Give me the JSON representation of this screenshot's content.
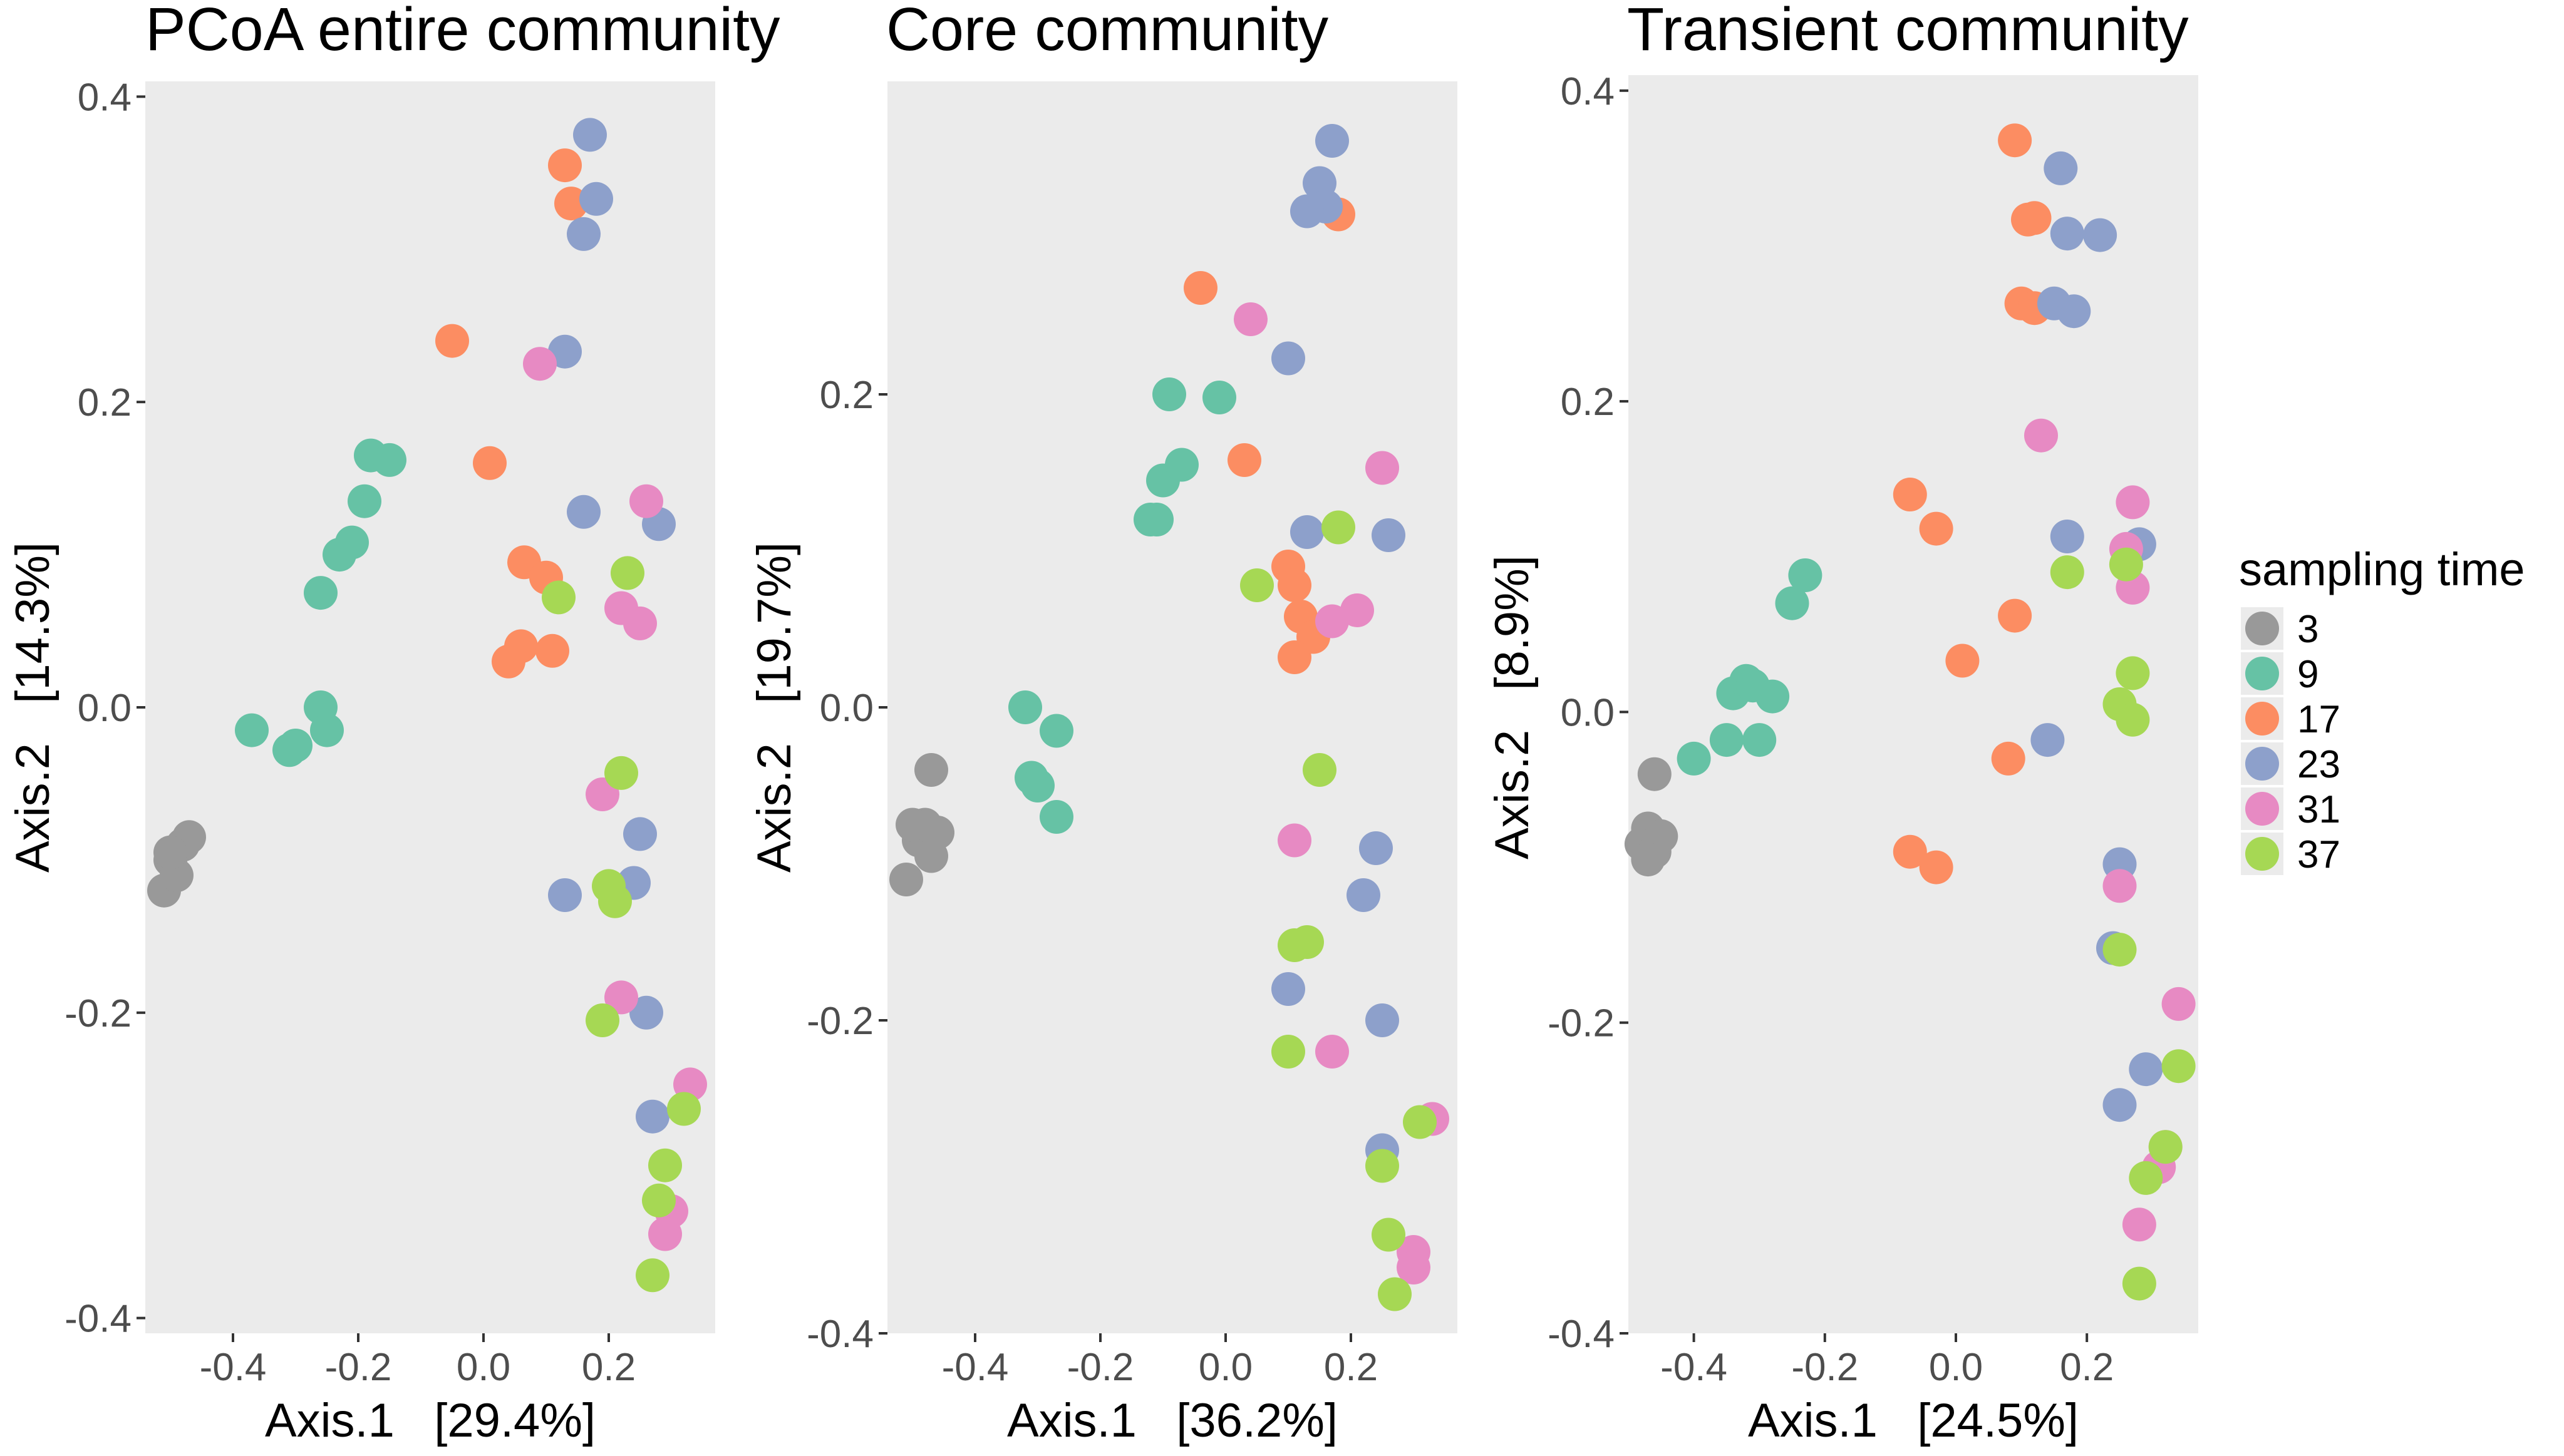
{
  "legend": {
    "title": "sampling time",
    "entries": [
      {
        "label": "3",
        "color": "#999999"
      },
      {
        "label": "9",
        "color": "#66C2A5"
      },
      {
        "label": "17",
        "color": "#FC8D62"
      },
      {
        "label": "23",
        "color": "#8DA0CB"
      },
      {
        "label": "31",
        "color": "#E78AC3"
      },
      {
        "label": "37",
        "color": "#A6D854"
      }
    ]
  },
  "chart_data": [
    {
      "type": "scatter",
      "title": "PCoA entire community",
      "xlabel": "Axis.1   [29.4%]",
      "ylabel": "Axis.2   [14.3%]",
      "xlim": [
        -0.54,
        0.37
      ],
      "ylim": [
        -0.41,
        0.41
      ],
      "xticks": [
        -0.4,
        -0.2,
        0.0,
        0.2
      ],
      "xtick_labels": [
        "-0.4",
        "-0.2",
        "0.0",
        "0.2"
      ],
      "yticks": [
        -0.4,
        -0.2,
        0.0,
        0.2,
        0.4
      ],
      "ytick_labels": [
        "-0.4",
        "-0.2",
        "0.0",
        "0.2",
        "0.4"
      ],
      "series": [
        {
          "name": "3",
          "points": [
            [
              -0.51,
              -0.12
            ],
            [
              -0.5,
              -0.1
            ],
            [
              -0.49,
              -0.11
            ],
            [
              -0.48,
              -0.09
            ],
            [
              -0.47,
              -0.085
            ],
            [
              -0.5,
              -0.095
            ]
          ]
        },
        {
          "name": "9",
          "points": [
            [
              -0.37,
              -0.015
            ],
            [
              -0.31,
              -0.028
            ],
            [
              -0.3,
              -0.025
            ],
            [
              -0.26,
              0.0
            ],
            [
              -0.25,
              -0.015
            ],
            [
              -0.26,
              0.075
            ],
            [
              -0.23,
              0.1
            ],
            [
              -0.21,
              0.108
            ],
            [
              -0.19,
              0.135
            ],
            [
              -0.18,
              0.165
            ],
            [
              -0.15,
              0.162
            ]
          ]
        },
        {
          "name": "17",
          "points": [
            [
              -0.05,
              0.24
            ],
            [
              0.01,
              0.16
            ],
            [
              0.04,
              0.03
            ],
            [
              0.06,
              0.04
            ],
            [
              0.065,
              0.095
            ],
            [
              0.1,
              0.085
            ],
            [
              0.11,
              0.037
            ],
            [
              0.13,
              0.355
            ],
            [
              0.14,
              0.33
            ]
          ]
        },
        {
          "name": "23",
          "points": [
            [
              0.17,
              0.375
            ],
            [
              0.18,
              0.333
            ],
            [
              0.16,
              0.31
            ],
            [
              0.13,
              0.233
            ],
            [
              0.16,
              0.128
            ],
            [
              0.28,
              0.12
            ],
            [
              0.13,
              -0.123
            ],
            [
              0.24,
              -0.115
            ],
            [
              0.25,
              -0.083
            ],
            [
              0.26,
              -0.2
            ],
            [
              0.27,
              -0.268
            ]
          ]
        },
        {
          "name": "31",
          "points": [
            [
              0.09,
              0.225
            ],
            [
              0.26,
              0.135
            ],
            [
              0.22,
              0.065
            ],
            [
              0.25,
              0.055
            ],
            [
              0.19,
              -0.057
            ],
            [
              0.22,
              -0.19
            ],
            [
              0.33,
              -0.247
            ],
            [
              0.3,
              -0.33
            ],
            [
              0.29,
              -0.345
            ]
          ]
        },
        {
          "name": "37",
          "points": [
            [
              0.23,
              0.088
            ],
            [
              0.12,
              0.072
            ],
            [
              0.22,
              -0.043
            ],
            [
              0.2,
              -0.117
            ],
            [
              0.21,
              -0.127
            ],
            [
              0.19,
              -0.205
            ],
            [
              0.32,
              -0.263
            ],
            [
              0.29,
              -0.3
            ],
            [
              0.28,
              -0.323
            ],
            [
              0.27,
              -0.372
            ]
          ]
        }
      ]
    },
    {
      "type": "scatter",
      "title": "Core community",
      "xlabel": "Axis.1   [36.2%]",
      "ylabel": "Axis.2   [19.7%]",
      "xlim": [
        -0.54,
        0.37
      ],
      "ylim": [
        -0.4,
        0.4
      ],
      "xticks": [
        -0.4,
        -0.2,
        0.0,
        0.2
      ],
      "xtick_labels": [
        "-0.4",
        "-0.2",
        "0.0",
        "0.2"
      ],
      "yticks": [
        -0.4,
        -0.2,
        0.0,
        0.2
      ],
      "ytick_labels": [
        "-0.4",
        "-0.2",
        "0.0",
        "0.2"
      ],
      "series": [
        {
          "name": "3",
          "points": [
            [
              -0.51,
              -0.11
            ],
            [
              -0.49,
              -0.085
            ],
            [
              -0.48,
              -0.075
            ],
            [
              -0.47,
              -0.095
            ],
            [
              -0.46,
              -0.08
            ],
            [
              -0.47,
              -0.04
            ],
            [
              -0.5,
              -0.075
            ]
          ]
        },
        {
          "name": "9",
          "points": [
            [
              -0.32,
              0.0
            ],
            [
              -0.31,
              -0.045
            ],
            [
              -0.3,
              -0.05
            ],
            [
              -0.27,
              -0.015
            ],
            [
              -0.27,
              -0.07
            ],
            [
              -0.12,
              0.12
            ],
            [
              -0.11,
              0.12
            ],
            [
              -0.1,
              0.145
            ],
            [
              -0.09,
              0.2
            ],
            [
              -0.07,
              0.155
            ],
            [
              -0.01,
              0.198
            ]
          ]
        },
        {
          "name": "17",
          "points": [
            [
              -0.04,
              0.268
            ],
            [
              0.03,
              0.158
            ],
            [
              0.1,
              0.09
            ],
            [
              0.11,
              0.078
            ],
            [
              0.12,
              0.058
            ],
            [
              0.14,
              0.045
            ],
            [
              0.11,
              0.032
            ],
            [
              0.18,
              0.315
            ]
          ]
        },
        {
          "name": "23",
          "points": [
            [
              0.17,
              0.362
            ],
            [
              0.15,
              0.335
            ],
            [
              0.16,
              0.32
            ],
            [
              0.13,
              0.317
            ],
            [
              0.1,
              0.223
            ],
            [
              0.13,
              0.112
            ],
            [
              0.26,
              0.11
            ],
            [
              0.24,
              -0.09
            ],
            [
              0.22,
              -0.12
            ],
            [
              0.1,
              -0.18
            ],
            [
              0.25,
              -0.2
            ],
            [
              0.25,
              -0.283
            ]
          ]
        },
        {
          "name": "31",
          "points": [
            [
              0.04,
              0.248
            ],
            [
              0.25,
              0.153
            ],
            [
              0.21,
              0.062
            ],
            [
              0.17,
              0.055
            ],
            [
              0.11,
              -0.085
            ],
            [
              0.17,
              -0.22
            ],
            [
              0.33,
              -0.263
            ],
            [
              0.3,
              -0.348
            ],
            [
              0.3,
              -0.358
            ]
          ]
        },
        {
          "name": "37",
          "points": [
            [
              0.05,
              0.078
            ],
            [
              0.18,
              0.115
            ],
            [
              0.15,
              -0.04
            ],
            [
              0.11,
              -0.152
            ],
            [
              0.13,
              -0.15
            ],
            [
              0.1,
              -0.22
            ],
            [
              0.31,
              -0.265
            ],
            [
              0.25,
              -0.293
            ],
            [
              0.26,
              -0.337
            ],
            [
              0.27,
              -0.375
            ]
          ]
        }
      ]
    },
    {
      "type": "scatter",
      "title": "Transient community",
      "xlabel": "Axis.1   [24.5%]",
      "ylabel": "Axis.2   [8.9%]",
      "xlim": [
        -0.5,
        0.37
      ],
      "ylim": [
        -0.4,
        0.41
      ],
      "xticks": [
        -0.4,
        -0.2,
        0.0,
        0.2
      ],
      "xtick_labels": [
        "-0.4",
        "-0.2",
        "0.0",
        "0.2"
      ],
      "yticks": [
        -0.4,
        -0.2,
        0.0,
        0.2,
        0.4
      ],
      "ytick_labels": [
        "-0.4",
        "-0.2",
        "0.0",
        "0.2",
        "0.4"
      ],
      "series": [
        {
          "name": "3",
          "points": [
            [
              -0.48,
              -0.085
            ],
            [
              -0.47,
              -0.075
            ],
            [
              -0.46,
              -0.09
            ],
            [
              -0.45,
              -0.08
            ],
            [
              -0.46,
              -0.04
            ],
            [
              -0.47,
              -0.095
            ]
          ]
        },
        {
          "name": "9",
          "points": [
            [
              -0.4,
              -0.03
            ],
            [
              -0.35,
              -0.018
            ],
            [
              -0.34,
              0.012
            ],
            [
              -0.32,
              0.02
            ],
            [
              -0.31,
              0.017
            ],
            [
              -0.3,
              -0.018
            ],
            [
              -0.28,
              0.01
            ],
            [
              -0.25,
              0.07
            ],
            [
              -0.23,
              0.088
            ]
          ]
        },
        {
          "name": "17",
          "points": [
            [
              0.09,
              0.368
            ],
            [
              0.11,
              0.317
            ],
            [
              0.12,
              0.318
            ],
            [
              0.1,
              0.263
            ],
            [
              0.12,
              0.26
            ],
            [
              -0.07,
              0.14
            ],
            [
              -0.03,
              0.118
            ],
            [
              0.09,
              0.062
            ],
            [
              0.01,
              0.033
            ],
            [
              0.08,
              -0.03
            ],
            [
              -0.07,
              -0.09
            ],
            [
              -0.03,
              -0.1
            ]
          ]
        },
        {
          "name": "23",
          "points": [
            [
              0.16,
              0.35
            ],
            [
              0.15,
              0.263
            ],
            [
              0.17,
              0.308
            ],
            [
              0.22,
              0.307
            ],
            [
              0.18,
              0.258
            ],
            [
              0.17,
              0.113
            ],
            [
              0.28,
              0.108
            ],
            [
              0.14,
              -0.018
            ],
            [
              0.25,
              -0.098
            ],
            [
              0.24,
              -0.152
            ],
            [
              0.29,
              -0.23
            ],
            [
              0.25,
              -0.253
            ]
          ]
        },
        {
          "name": "31",
          "points": [
            [
              0.13,
              0.178
            ],
            [
              0.27,
              0.135
            ],
            [
              0.26,
              0.105
            ],
            [
              0.27,
              0.08
            ],
            [
              0.25,
              -0.112
            ],
            [
              0.34,
              -0.188
            ],
            [
              0.32,
              -0.28
            ],
            [
              0.31,
              -0.293
            ],
            [
              0.28,
              -0.33
            ]
          ]
        },
        {
          "name": "37",
          "points": [
            [
              0.17,
              0.09
            ],
            [
              0.26,
              0.095
            ],
            [
              0.27,
              0.025
            ],
            [
              0.25,
              0.005
            ],
            [
              0.27,
              -0.005
            ],
            [
              0.25,
              -0.153
            ],
            [
              0.34,
              -0.228
            ],
            [
              0.32,
              -0.28
            ],
            [
              0.29,
              -0.3
            ],
            [
              0.28,
              -0.368
            ]
          ]
        }
      ]
    }
  ]
}
